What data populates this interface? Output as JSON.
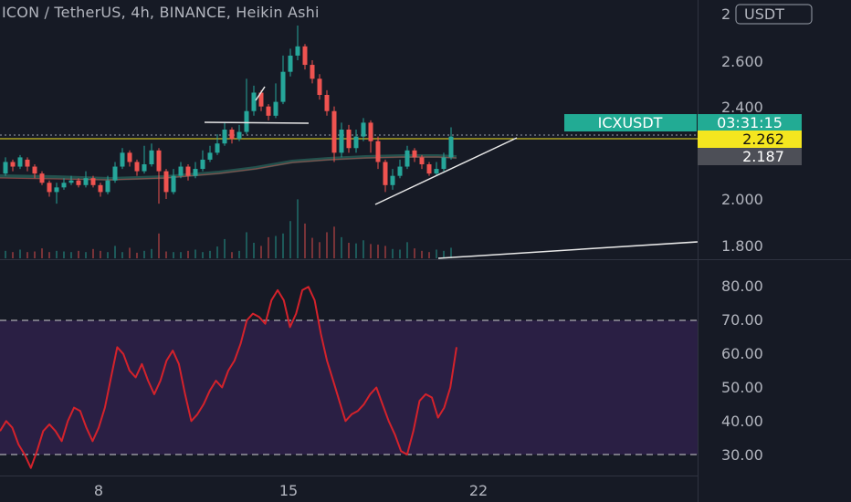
{
  "header": {
    "title": "ICON / TetherUS, 4h, BINANCE, Heikin Ashi"
  },
  "price_axis": {
    "currency_badge": "USDT",
    "top_tick": "2",
    "ticks": [
      "2.600",
      "2.400",
      "2.000",
      "1.800"
    ],
    "symbol_tag": "ICXUSDT",
    "countdown": "03:31:15",
    "last_price": "2.262",
    "ma_price": "2.187"
  },
  "rsi_axis": {
    "ticks": [
      "80.00",
      "70.00",
      "60.00",
      "50.00",
      "40.00",
      "30.00"
    ]
  },
  "time_axis": {
    "ticks": [
      "8",
      "15",
      "22"
    ]
  },
  "colors": {
    "background": "#161a25",
    "bull": "#26a69a",
    "bear": "#ef5350",
    "rsi_line": "#d4222b",
    "rsi_band": "#2a1f44",
    "last_price_bg": "#f5e61f",
    "ma_label_bg": "#4d4f57",
    "symbol_bg": "#22ab94"
  },
  "chart_data": [
    {
      "type": "candlestick",
      "title": "ICON / TetherUS, 4h, BINANCE, Heikin Ashi",
      "x_ticks": [
        "8",
        "15",
        "22"
      ],
      "y_ticks": [
        1.8,
        2.0,
        2.4,
        2.6
      ],
      "ylim": [
        1.74,
        2.82
      ],
      "last_price": 2.262,
      "moving_average_last": 2.187,
      "candles": [
        {
          "o": 2.11,
          "c": 2.16,
          "h": 2.18,
          "l": 2.1
        },
        {
          "o": 2.16,
          "c": 2.14,
          "h": 2.17,
          "l": 2.12
        },
        {
          "o": 2.14,
          "c": 2.18,
          "h": 2.19,
          "l": 2.13
        },
        {
          "o": 2.17,
          "c": 2.14,
          "h": 2.18,
          "l": 2.12
        },
        {
          "o": 2.14,
          "c": 2.11,
          "h": 2.15,
          "l": 2.09
        },
        {
          "o": 2.11,
          "c": 2.07,
          "h": 2.12,
          "l": 2.06
        },
        {
          "o": 2.07,
          "c": 2.03,
          "h": 2.08,
          "l": 2.01
        },
        {
          "o": 2.03,
          "c": 2.05,
          "h": 2.07,
          "l": 1.98
        },
        {
          "o": 2.05,
          "c": 2.07,
          "h": 2.09,
          "l": 2.04
        },
        {
          "o": 2.07,
          "c": 2.08,
          "h": 2.1,
          "l": 2.06
        },
        {
          "o": 2.08,
          "c": 2.06,
          "h": 2.09,
          "l": 2.05
        },
        {
          "o": 2.06,
          "c": 2.09,
          "h": 2.12,
          "l": 2.05
        },
        {
          "o": 2.09,
          "c": 2.06,
          "h": 2.1,
          "l": 2.05
        },
        {
          "o": 2.06,
          "c": 2.03,
          "h": 2.07,
          "l": 2.01
        },
        {
          "o": 2.03,
          "c": 2.08,
          "h": 2.1,
          "l": 2.02
        },
        {
          "o": 2.08,
          "c": 2.14,
          "h": 2.16,
          "l": 2.07
        },
        {
          "o": 2.14,
          "c": 2.2,
          "h": 2.22,
          "l": 2.13
        },
        {
          "o": 2.2,
          "c": 2.16,
          "h": 2.21,
          "l": 2.14
        },
        {
          "o": 2.16,
          "c": 2.12,
          "h": 2.17,
          "l": 2.1
        },
        {
          "o": 2.12,
          "c": 2.15,
          "h": 2.23,
          "l": 2.11
        },
        {
          "o": 2.15,
          "c": 2.21,
          "h": 2.24,
          "l": 2.14
        },
        {
          "o": 2.21,
          "c": 2.12,
          "h": 2.22,
          "l": 1.98
        },
        {
          "o": 2.12,
          "c": 2.03,
          "h": 2.13,
          "l": 2.0
        },
        {
          "o": 2.03,
          "c": 2.1,
          "h": 2.13,
          "l": 2.02
        },
        {
          "o": 2.1,
          "c": 2.14,
          "h": 2.16,
          "l": 2.09
        },
        {
          "o": 2.14,
          "c": 2.1,
          "h": 2.15,
          "l": 2.08
        },
        {
          "o": 2.1,
          "c": 2.13,
          "h": 2.16,
          "l": 2.09
        },
        {
          "o": 2.13,
          "c": 2.17,
          "h": 2.21,
          "l": 2.12
        },
        {
          "o": 2.17,
          "c": 2.2,
          "h": 2.23,
          "l": 2.16
        },
        {
          "o": 2.2,
          "c": 2.24,
          "h": 2.28,
          "l": 2.19
        },
        {
          "o": 2.24,
          "c": 2.3,
          "h": 2.33,
          "l": 2.23
        },
        {
          "o": 2.3,
          "c": 2.26,
          "h": 2.31,
          "l": 2.24
        },
        {
          "o": 2.26,
          "c": 2.29,
          "h": 2.32,
          "l": 2.25
        },
        {
          "o": 2.29,
          "c": 2.38,
          "h": 2.52,
          "l": 2.28
        },
        {
          "o": 2.38,
          "c": 2.46,
          "h": 2.49,
          "l": 2.36
        },
        {
          "o": 2.46,
          "c": 2.4,
          "h": 2.47,
          "l": 2.38
        },
        {
          "o": 2.4,
          "c": 2.36,
          "h": 2.41,
          "l": 2.34
        },
        {
          "o": 2.36,
          "c": 2.42,
          "h": 2.5,
          "l": 2.35
        },
        {
          "o": 2.42,
          "c": 2.55,
          "h": 2.62,
          "l": 2.41
        },
        {
          "o": 2.55,
          "c": 2.62,
          "h": 2.65,
          "l": 2.53
        },
        {
          "o": 2.62,
          "c": 2.66,
          "h": 2.75,
          "l": 2.6
        },
        {
          "o": 2.66,
          "c": 2.58,
          "h": 2.67,
          "l": 2.56
        },
        {
          "o": 2.58,
          "c": 2.52,
          "h": 2.6,
          "l": 2.5
        },
        {
          "o": 2.52,
          "c": 2.45,
          "h": 2.54,
          "l": 2.43
        },
        {
          "o": 2.45,
          "c": 2.38,
          "h": 2.47,
          "l": 2.36
        },
        {
          "o": 2.38,
          "c": 2.2,
          "h": 2.4,
          "l": 2.16
        },
        {
          "o": 2.2,
          "c": 2.3,
          "h": 2.33,
          "l": 2.18
        },
        {
          "o": 2.3,
          "c": 2.22,
          "h": 2.32,
          "l": 2.2
        },
        {
          "o": 2.22,
          "c": 2.27,
          "h": 2.3,
          "l": 2.2
        },
        {
          "o": 2.27,
          "c": 2.33,
          "h": 2.35,
          "l": 2.25
        },
        {
          "o": 2.33,
          "c": 2.25,
          "h": 2.34,
          "l": 2.2
        },
        {
          "o": 2.25,
          "c": 2.16,
          "h": 2.27,
          "l": 2.13
        },
        {
          "o": 2.16,
          "c": 2.06,
          "h": 2.17,
          "l": 2.03
        },
        {
          "o": 2.06,
          "c": 2.1,
          "h": 2.13,
          "l": 2.04
        },
        {
          "o": 2.1,
          "c": 2.14,
          "h": 2.17,
          "l": 2.09
        },
        {
          "o": 2.14,
          "c": 2.21,
          "h": 2.23,
          "l": 2.13
        },
        {
          "o": 2.21,
          "c": 2.18,
          "h": 2.22,
          "l": 2.16
        },
        {
          "o": 2.18,
          "c": 2.15,
          "h": 2.19,
          "l": 2.13
        },
        {
          "o": 2.15,
          "c": 2.11,
          "h": 2.16,
          "l": 2.1
        },
        {
          "o": 2.11,
          "c": 2.13,
          "h": 2.16,
          "l": 2.1
        },
        {
          "o": 2.13,
          "c": 2.18,
          "h": 2.2,
          "l": 2.12
        },
        {
          "o": 2.18,
          "c": 2.27,
          "h": 2.31,
          "l": 2.17
        }
      ],
      "volume": [
        0.12,
        0.1,
        0.14,
        0.1,
        0.11,
        0.16,
        0.1,
        0.12,
        0.11,
        0.1,
        0.12,
        0.1,
        0.15,
        0.12,
        0.1,
        0.2,
        0.1,
        0.17,
        0.09,
        0.12,
        0.15,
        0.4,
        0.11,
        0.1,
        0.1,
        0.12,
        0.14,
        0.1,
        0.12,
        0.19,
        0.31,
        0.1,
        0.12,
        0.42,
        0.25,
        0.2,
        0.34,
        0.36,
        0.4,
        0.6,
        0.95,
        0.56,
        0.33,
        0.26,
        0.42,
        0.51,
        0.34,
        0.25,
        0.24,
        0.29,
        0.23,
        0.22,
        0.2,
        0.15,
        0.14,
        0.26,
        0.16,
        0.12,
        0.1,
        0.14,
        0.12,
        0.17
      ]
    },
    {
      "type": "line",
      "name": "RSI",
      "y_ticks": [
        30,
        40,
        50,
        60,
        70,
        80
      ],
      "ylim": [
        27,
        85
      ],
      "bands": [
        30,
        70
      ],
      "values": [
        37,
        40,
        38,
        33,
        30,
        26,
        31,
        37,
        39,
        37,
        34,
        40,
        44,
        43,
        38,
        34,
        38,
        44,
        53,
        62,
        60,
        55,
        53,
        57,
        52,
        48,
        52,
        58,
        61,
        57,
        48,
        40,
        42,
        45,
        49,
        52,
        50,
        55,
        58,
        63,
        70,
        72,
        71,
        69,
        76,
        79,
        76,
        68,
        72,
        79,
        80,
        76,
        66,
        58,
        52,
        46,
        40,
        42,
        43,
        45,
        48,
        50,
        45,
        40,
        36,
        31,
        30,
        37,
        46,
        48,
        47,
        41,
        44,
        50,
        62
      ]
    }
  ]
}
